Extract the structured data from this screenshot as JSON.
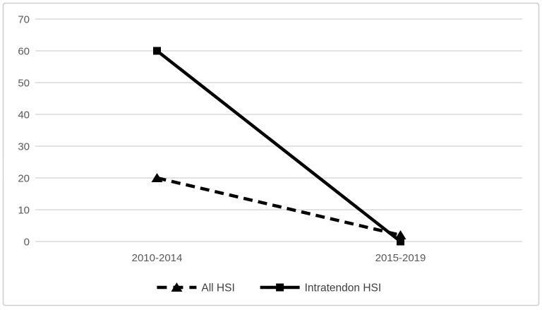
{
  "chart_data": {
    "type": "line",
    "title": "",
    "xlabel": "",
    "ylabel": "",
    "categories": [
      "2010-2014",
      "2015-2019"
    ],
    "series": [
      {
        "name": "All HSI",
        "values": [
          20,
          2
        ],
        "line_style": "dashed",
        "marker": "triangle",
        "color": "#000000"
      },
      {
        "name": "Intratendon HSI",
        "values": [
          60,
          0
        ],
        "line_style": "solid",
        "marker": "square",
        "color": "#000000"
      }
    ],
    "ylim": [
      0,
      70
    ],
    "yticks": [
      0,
      10,
      20,
      30,
      40,
      50,
      60,
      70
    ],
    "grid": true,
    "legend_position": "bottom",
    "colors": {
      "background": "#ffffff",
      "gridline": "#d9d9d9",
      "axis_text": "#595959",
      "legend_text": "#404040",
      "series_line": "#000000",
      "frame_border": "#cfcfcf"
    }
  }
}
